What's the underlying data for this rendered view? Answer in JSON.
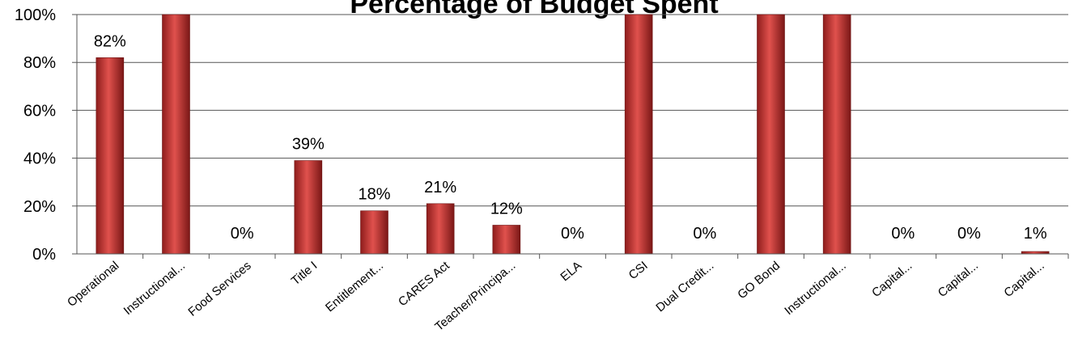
{
  "chart_data": {
    "type": "bar",
    "title": "Percentage of Budget Spent",
    "xlabel": "",
    "ylabel": "",
    "ylim": [
      0,
      100
    ],
    "y_ticks": [
      "0%",
      "20%",
      "40%",
      "60%",
      "80%",
      "100%"
    ],
    "y_tick_values": [
      0,
      20,
      40,
      60,
      80,
      100
    ],
    "grid": true,
    "bar_color": "#c0302f",
    "categories": [
      "Operational",
      "Instructional...",
      "Food Services",
      "Title I",
      "Entitlement...",
      "CARES Act",
      "Teacher/Principa...",
      "ELA",
      "CSI",
      "Dual Credit...",
      "GO Bond",
      "Instructional...",
      "Capital...",
      "Capital...",
      "Capital..."
    ],
    "values": [
      82,
      100,
      0,
      39,
      18,
      21,
      12,
      0,
      100,
      0,
      100,
      100,
      0,
      0,
      1
    ],
    "data_labels": [
      "82%",
      "",
      "0%",
      "39%",
      "18%",
      "21%",
      "12%",
      "0%",
      "",
      "0%",
      "",
      "",
      "0%",
      "0%",
      "1%"
    ]
  }
}
